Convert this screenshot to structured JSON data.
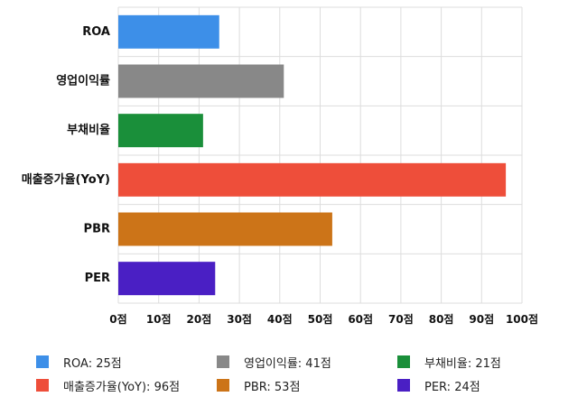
{
  "chart_data": {
    "type": "bar",
    "orientation": "horizontal",
    "categories": [
      "ROA",
      "영업이익률",
      "부채비율",
      "매출증가율(YoY)",
      "PBR",
      "PER"
    ],
    "values": [
      25,
      41,
      21,
      96,
      53,
      24
    ],
    "colors": [
      "#3d8fe8",
      "#888888",
      "#1a8f3a",
      "#ee4e3a",
      "#cc7418",
      "#4a1fc4"
    ],
    "xlim": [
      0,
      100
    ],
    "xticks": [
      0,
      10,
      20,
      30,
      40,
      50,
      60,
      70,
      80,
      90,
      100
    ],
    "tick_suffix": "점",
    "xticklabels": [
      "0점",
      "10점",
      "20점",
      "30점",
      "40점",
      "50점",
      "60점",
      "70점",
      "80점",
      "90점",
      "100점"
    ],
    "grid": true,
    "legend_position": "bottom",
    "legend_labels": [
      "ROA: 25점",
      "영업이익률: 41점",
      "부채비율: 21점",
      "매출증가율(YoY): 96점",
      "PBR: 53점",
      "PER: 24점"
    ]
  }
}
